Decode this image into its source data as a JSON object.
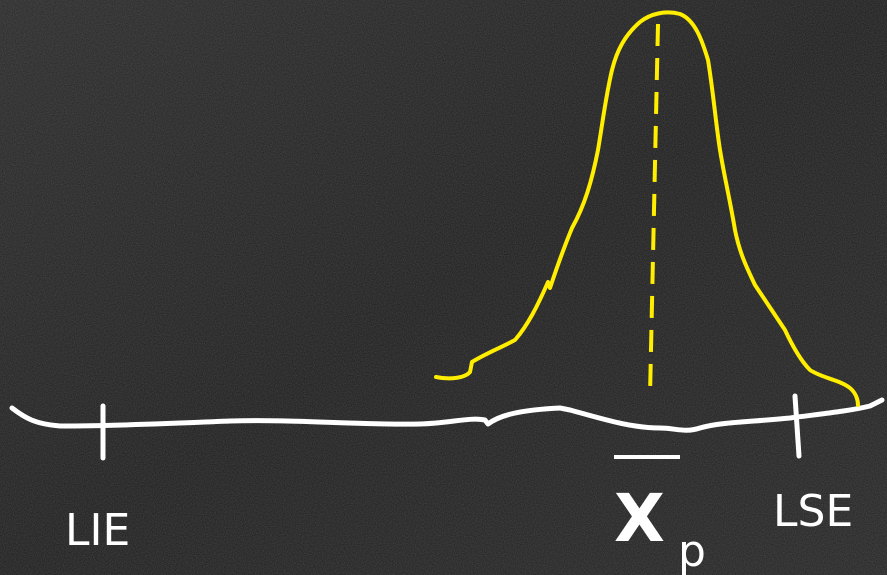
{
  "labels": {
    "lower_limit": "LIE",
    "mean": "X",
    "mean_subscript": "p",
    "upper_limit": "LSE"
  }
}
